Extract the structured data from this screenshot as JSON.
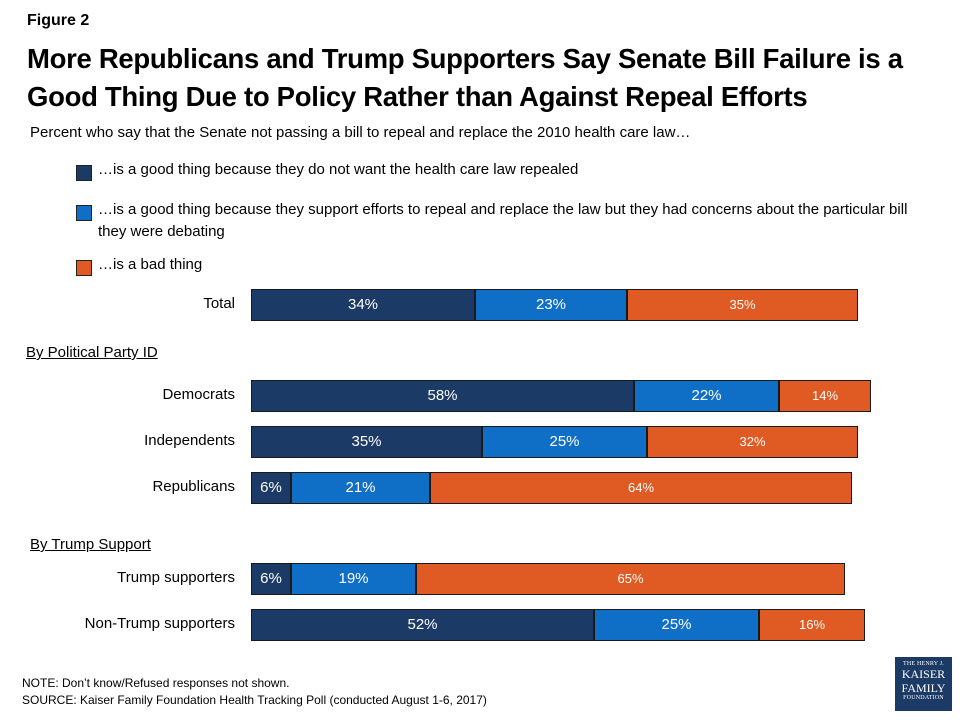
{
  "figure_label": "Figure 2",
  "colors": {
    "dark_navy": "#1c3a66",
    "medium_blue": "#0f6fc6",
    "orange": "#e05a24"
  },
  "chart_data": {
    "type": "bar",
    "orientation": "horizontal",
    "stacked": true,
    "title": "More Republicans and Trump Supporters Say Senate Bill Failure is a Good Thing Due to Policy Rather than Against Repeal Efforts",
    "subtitle": "Percent who say that the Senate not passing a bill to repeal and replace the 2010 health care law…",
    "legend_placement": "top",
    "legend": [
      "…is a good thing because they do not want the health care law repealed",
      "…is a good thing because they support efforts to repeal and replace the law but they had concerns about the particular bill they were debating",
      "…is a bad thing"
    ],
    "sections": [
      {
        "label": "",
        "categories": [
          "Total"
        ]
      },
      {
        "label": "By Political Party ID",
        "categories": [
          "Democrats",
          "Independents",
          "Republicans"
        ]
      },
      {
        "label": "By Trump Support",
        "categories": [
          "Trump supporters",
          "Non-Trump supporters"
        ]
      }
    ],
    "categories": [
      "Total",
      "Democrats",
      "Independents",
      "Republicans",
      "Trump supporters",
      "Non-Trump supporters"
    ],
    "series": [
      {
        "values": [
          34,
          58,
          35,
          6,
          6,
          52
        ],
        "labels": [
          "34%",
          "58%",
          "35%",
          "6%",
          "6%",
          "52%"
        ]
      },
      {
        "values": [
          23,
          22,
          25,
          21,
          19,
          25
        ],
        "labels": [
          "23%",
          "22%",
          "25%",
          "21%",
          "19%",
          "25%"
        ]
      },
      {
        "values": [
          35,
          14,
          32,
          64,
          65,
          16
        ],
        "labels": [
          "35%",
          "14%",
          "32%",
          "64%",
          "65%",
          "16%"
        ]
      }
    ],
    "xlim": [
      0,
      100
    ]
  },
  "notes": {
    "note": "NOTE: Don’t know/Refused responses not shown.",
    "source": "SOURCE: Kaiser Family Foundation Health Tracking Poll (conducted August 1-6, 2017)"
  },
  "logo": {
    "line1": "THE HENRY J.",
    "line2": "KAISER",
    "line3": "FAMILY",
    "line4": "FOUNDATION"
  }
}
